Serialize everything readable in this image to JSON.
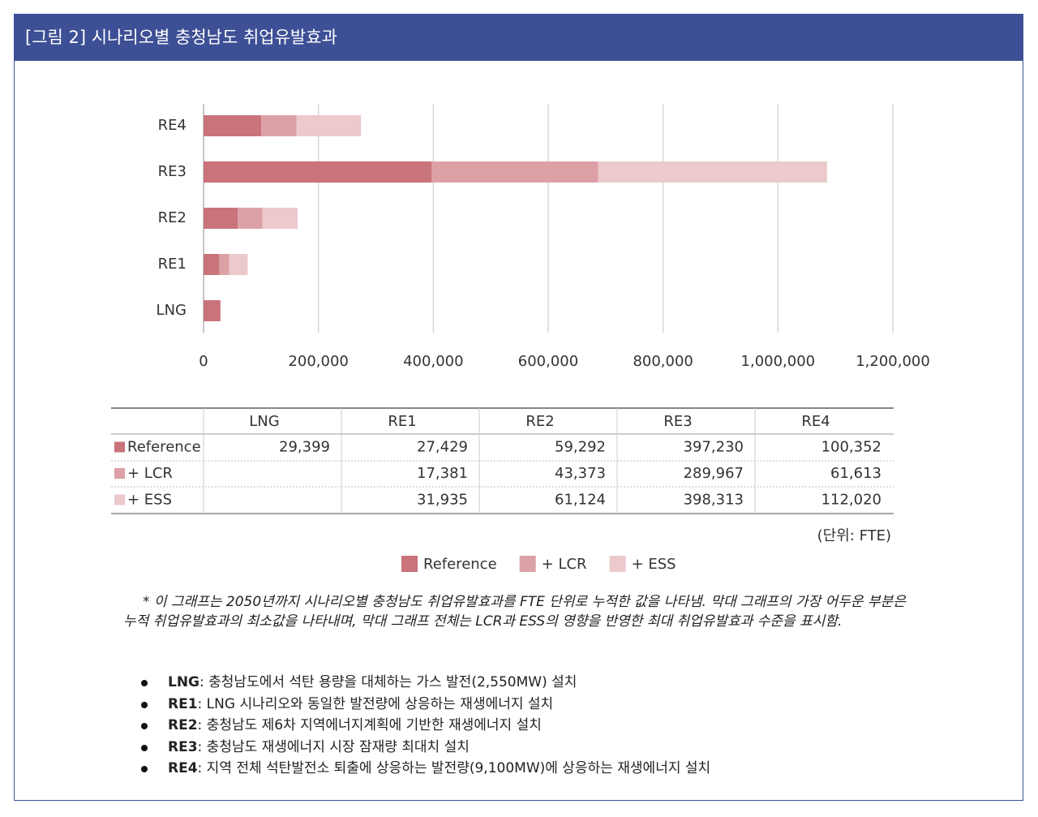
{
  "chart_data": {
    "type": "stacked-bar-horizontal",
    "title": "[그림 2] 시나리오별 충청남도 취업유발효과",
    "categories": [
      "LNG",
      "RE1",
      "RE2",
      "RE3",
      "RE4"
    ],
    "series": [
      {
        "name": "Reference",
        "color": "#c9737b",
        "values": [
          29399,
          27429,
          59292,
          397230,
          100352
        ],
        "value_labels": [
          "29,399",
          "27,429",
          "59,292",
          "397,230",
          "100,352"
        ]
      },
      {
        "name": "+ LCR",
        "color": "#dca1a6",
        "values": [
          null,
          17381,
          43373,
          289967,
          61613
        ],
        "value_labels": [
          null,
          "17,381",
          "43,373",
          "289,967",
          "61,613"
        ]
      },
      {
        "name": "+ ESS",
        "color": "#ecc9cc",
        "values": [
          null,
          31935,
          61124,
          398313,
          112020
        ],
        "value_labels": [
          null,
          "31,935",
          "61,124",
          "398,313",
          "112,020"
        ]
      }
    ],
    "xlim": [
      0,
      1200000
    ],
    "xticks": [
      0,
      {
        "value": 200000,
        "label": "200,000"
      },
      {
        "value": 400000,
        "label": "400,000"
      },
      {
        "value": 600000,
        "label": "600,000"
      },
      {
        "value": 800000,
        "label": "800,000"
      },
      {
        "value": 1000000,
        "label": "1,000,000"
      },
      {
        "value": 1200000,
        "label": "1,200,000"
      }
    ],
    "grid": true,
    "unit_note": "(단위: FTE)"
  },
  "notes": {
    "footnote": "* 이 그래프는 2050년까지 시나리오별 충청남도 취업유발효과를 FTE 단위로 누적한 값을 나타냄. 막대 그래프의 가장 어두운 부분은 누적 취업유발효과의 최소값을 나타내며, 막대 그래프 전체는 LCR과 ESS의 영향을 반영한 최대 취업유발효과 수준을 표시함.",
    "items": [
      {
        "label": "LNG",
        "text": ": 충청남도에서 석탄 용량을 대체하는 가스 발전(2,550MW) 설치"
      },
      {
        "label": "RE1",
        "text": ": LNG 시나리오와 동일한 발전량에 상응하는 재생에너지 설치"
      },
      {
        "label": "RE2",
        "text": ": 충청남도 제6차 지역에너지계획에 기반한 재생에너지 설치"
      },
      {
        "label": "RE3",
        "text": ": 충청남도 재생에너지 시장 잠재량 최대치 설치"
      },
      {
        "label": "RE4",
        "text": ": 지역 전체 석탄발전소 퇴출에 상응하는 발전량(9,100MW)에 상응하는 재생에너지 설치"
      }
    ]
  }
}
